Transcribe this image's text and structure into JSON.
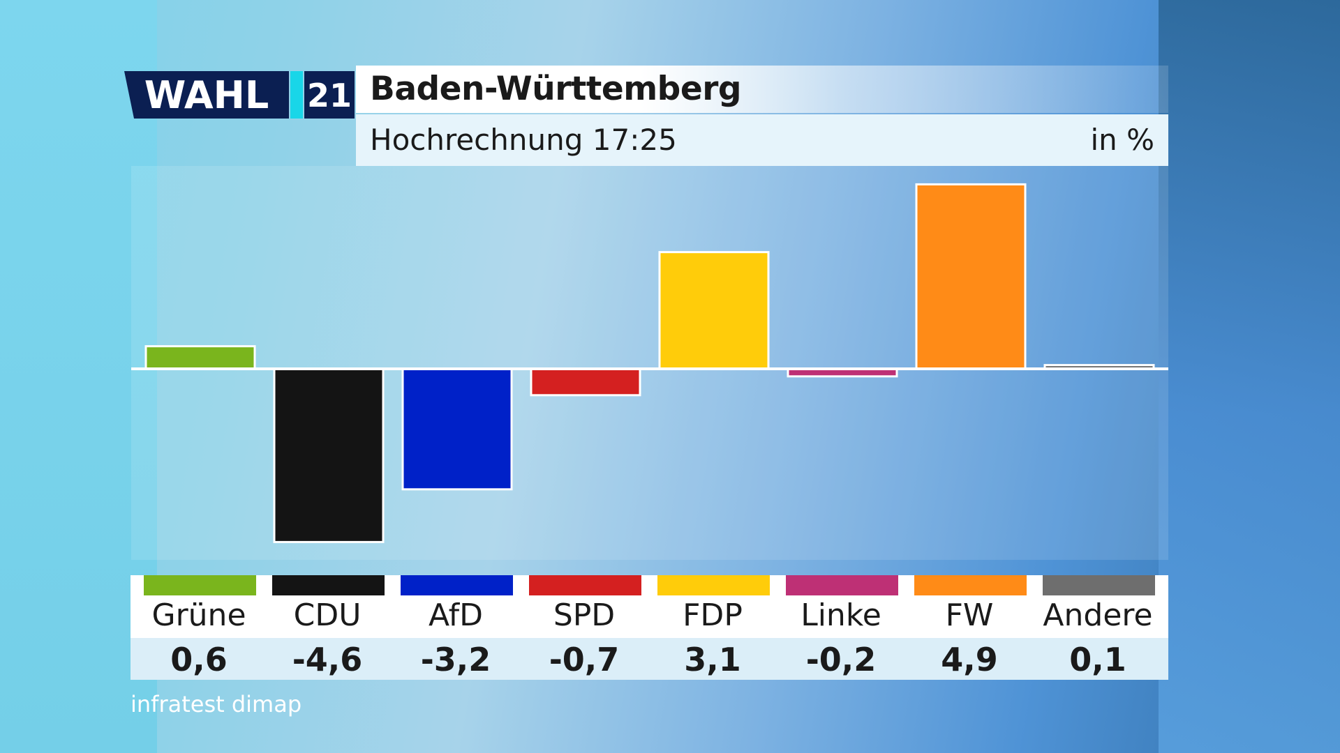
{
  "header": {
    "logo_text": "WAHL",
    "logo_year": "21",
    "title": "Baden-Württemberg",
    "subtitle": "Hochrechnung 17:25",
    "unit": "in %"
  },
  "colors": {
    "logo_navy": "#0b1f52",
    "logo_cyan": "#19d6e8",
    "baseline": "#ffffff"
  },
  "chart_data": {
    "type": "bar",
    "title": "Baden-Württemberg",
    "subtitle": "Hochrechnung 17:25",
    "unit": "in %",
    "categories": [
      "Grüne",
      "CDU",
      "AfD",
      "SPD",
      "FDP",
      "Linke",
      "FW",
      "Andere"
    ],
    "values": [
      0.6,
      -4.6,
      -3.2,
      -0.7,
      3.1,
      -0.2,
      4.9,
      0.1
    ],
    "value_labels": [
      "0,6",
      "-4,6",
      "-3,2",
      "-0,7",
      "3,1",
      "-0,2",
      "4,9",
      "0,1"
    ],
    "colors": [
      "#7ab51d",
      "#141414",
      "#0021c8",
      "#d42020",
      "#ffcc0a",
      "#be3075",
      "#ff8b17",
      "#6e6e6e"
    ],
    "ylim": [
      -4.6,
      4.9
    ],
    "grid": false,
    "legend": "bottom"
  },
  "source": "infratest dimap"
}
